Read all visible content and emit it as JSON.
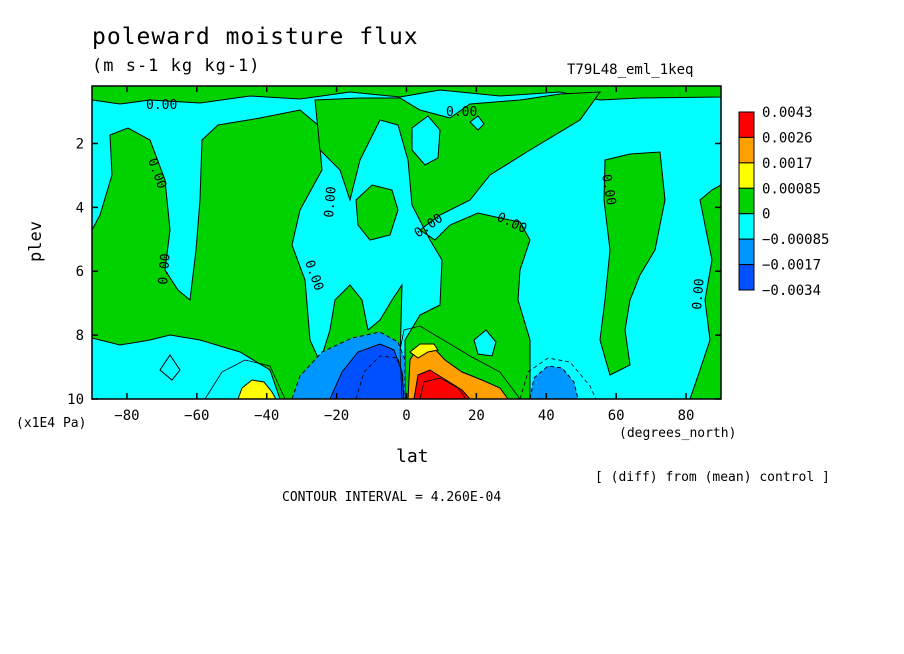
{
  "chart_data": {
    "type": "heatmap",
    "title": "poleward moisture flux",
    "units": "(m s-1 kg kg-1)",
    "experiment": "T79L48_eml_1keq",
    "xlabel": "lat",
    "ylabel": "plev",
    "x_unit_label": "(degrees_north)",
    "y_unit_label": "(x1E4 Pa)",
    "xlim": [
      -90,
      90
    ],
    "ylim": [
      10,
      0.2
    ],
    "x_ticks": [
      -80,
      -60,
      -40,
      -20,
      0,
      20,
      40,
      60,
      80
    ],
    "x_tick_labels": [
      "-80",
      "-60",
      "-40",
      "-20",
      "0",
      "20",
      "40",
      "60",
      "80"
    ],
    "y_ticks": [
      2,
      4,
      6,
      8,
      10
    ],
    "y_tick_labels": [
      "2",
      "4",
      "6",
      "8",
      "10"
    ],
    "contour_label": "0.00",
    "diff_note": "[ (diff) from (mean) control ]",
    "contour_interval": "CONTOUR INTERVAL = 4.260E-04",
    "colorbar": {
      "levels": [
        "0.0043",
        "0.0026",
        "0.0017",
        "0.00085",
        "0",
        "-0.00085",
        "-0.0017",
        "-0.0034"
      ],
      "colors": [
        "#ff0000",
        "#ff9f00",
        "#ffff00",
        "#00d200",
        "#00ffff",
        "#0096ff",
        "#0050ff"
      ]
    },
    "regions": [
      {
        "name": "background",
        "value_band": "-0.00085 to 0",
        "color": "#00ffff"
      },
      {
        "name": "sh-midlat-green",
        "lat_range": [
          -90,
          -30
        ],
        "plev_range": [
          0.2,
          10
        ],
        "value_band": "0 to 0.00085",
        "color": "#00d200"
      },
      {
        "name": "tropics-green",
        "lat_range": [
          -25,
          35
        ],
        "plev_range": [
          0.2,
          10
        ],
        "value_band": "0 to 0.00085",
        "color": "#00d200"
      },
      {
        "name": "nh-highlat-green",
        "lat_range": [
          50,
          90
        ],
        "plev_range": [
          2,
          10
        ],
        "value_band": "0 to 0.00085",
        "color": "#00d200"
      },
      {
        "name": "sh-yellow",
        "lat_range": [
          -48,
          -36
        ],
        "plev_range": [
          9.4,
          10
        ],
        "value_band": "0.00085 to 0.0017",
        "color": "#ffff00"
      },
      {
        "name": "sh-deep-blue",
        "lat_range": [
          -22,
          0
        ],
        "plev_range": [
          8.2,
          10
        ],
        "value_band": "-0.0034 to -0.0017",
        "color": "#0050ff"
      },
      {
        "name": "nh-red-core",
        "lat_range": [
          2,
          18
        ],
        "plev_range": [
          9.0,
          10
        ],
        "value_band": "above 0.0026",
        "color": "#ff0000"
      },
      {
        "name": "nh-orange",
        "lat_range": [
          1,
          28
        ],
        "plev_range": [
          8.2,
          10
        ],
        "value_band": "0.0017 to 0.0026",
        "color": "#ff9f00"
      },
      {
        "name": "nh-blue",
        "lat_range": [
          34,
          52
        ],
        "plev_range": [
          9.2,
          10
        ],
        "value_band": "-0.0017 to -0.00085",
        "color": "#0096ff"
      }
    ]
  }
}
